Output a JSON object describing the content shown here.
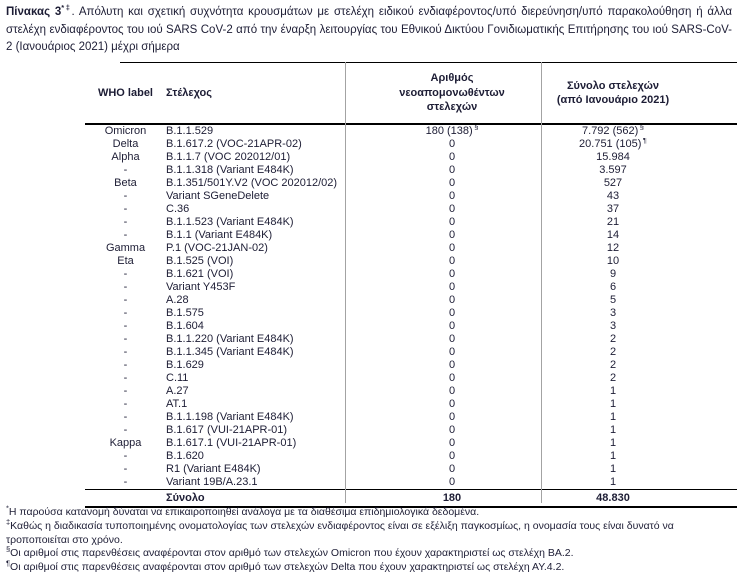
{
  "title": {
    "heading": "Πίνακας 3",
    "heading_sup": "*‡",
    "body": ". Απόλυτη και σχετική συχνότητα κρουσμάτων με στελέχη ειδικού ενδιαφέροντος/υπό διερεύνηση/υπό παρακολούθηση ή άλλα στελέχη ενδιαφέροντος του ιού SARS CoV-2 από την έναρξη λειτουργίας του Εθνικού Δικτύου Γονιδιωματικής Επιτήρησης του ιού SARS-CoV-2 (Ιανουάριος 2021) μέχρι σήμερα"
  },
  "table": {
    "headers": {
      "who": "WHO label",
      "strain": "Στέλεχος",
      "new_count": "Αριθμός νεοαπομονωθέντων στελεχών",
      "total_count": "Σύνολο στελεχών (από Ιανουάριο 2021)"
    },
    "rows": [
      {
        "who": "Omicron",
        "strain": "B.1.1.529",
        "new": "180 (138)",
        "new_sup": "§",
        "total": "7.792 (562)",
        "total_sup": "§"
      },
      {
        "who": "Delta",
        "strain": "B.1.617.2 (VOC-21APR-02)",
        "new": "0",
        "total": "20.751 (105)",
        "total_sup": "¶"
      },
      {
        "who": "Alpha",
        "strain": "B.1.1.7 (VOC 202012/01)",
        "new": "0",
        "total": "15.984"
      },
      {
        "who": "-",
        "strain": "B.1.1.318 (Variant E484K)",
        "new": "0",
        "total": "3.597"
      },
      {
        "who": "Beta",
        "strain": "B.1.351/501Y.V2 (VOC 202012/02)",
        "new": "0",
        "total": "527"
      },
      {
        "who": "-",
        "strain": "Variant SGeneDelete",
        "new": "0",
        "total": "43"
      },
      {
        "who": "-",
        "strain": "C.36",
        "new": "0",
        "total": "37"
      },
      {
        "who": "-",
        "strain": "B.1.1.523 (Variant E484K)",
        "new": "0",
        "total": "21"
      },
      {
        "who": "-",
        "strain": "B.1.1 (Variant E484K)",
        "new": "0",
        "total": "14"
      },
      {
        "who": "Gamma",
        "strain": "P.1 (VOC-21JAN-02)",
        "new": "0",
        "total": "12"
      },
      {
        "who": "Eta",
        "strain": "B.1.525 (VOI)",
        "new": "0",
        "total": "10"
      },
      {
        "who": "-",
        "strain": "B.1.621 (VOI)",
        "new": "0",
        "total": "9"
      },
      {
        "who": "-",
        "strain": "Variant Y453F",
        "new": "0",
        "total": "6"
      },
      {
        "who": "-",
        "strain": "A.28",
        "new": "0",
        "total": "5"
      },
      {
        "who": "-",
        "strain": "B.1.575",
        "new": "0",
        "total": "3"
      },
      {
        "who": "-",
        "strain": "B.1.604",
        "new": "0",
        "total": "3"
      },
      {
        "who": "-",
        "strain": "B.1.1.220 (Variant E484K)",
        "new": "0",
        "total": "2"
      },
      {
        "who": "-",
        "strain": "B.1.1.345 (Variant E484K)",
        "new": "0",
        "total": "2"
      },
      {
        "who": "-",
        "strain": "B.1.629",
        "new": "0",
        "total": "2"
      },
      {
        "who": "-",
        "strain": "C.11",
        "new": "0",
        "total": "2"
      },
      {
        "who": "-",
        "strain": "A.27",
        "new": "0",
        "total": "1"
      },
      {
        "who": "-",
        "strain": "AT.1",
        "new": "0",
        "total": "1"
      },
      {
        "who": "-",
        "strain": "B.1.1.198 (Variant E484K)",
        "new": "0",
        "total": "1"
      },
      {
        "who": "-",
        "strain": "B.1.617 (VUI-21APR-01)",
        "new": "0",
        "total": "1"
      },
      {
        "who": "Kappa",
        "strain": "B.1.617.1 (VUI-21APR-01)",
        "new": "0",
        "total": "1"
      },
      {
        "who": "-",
        "strain": "B.1.620",
        "new": "0",
        "total": "1"
      },
      {
        "who": "-",
        "strain": "R1 (Variant E484K)",
        "new": "0",
        "total": "1"
      },
      {
        "who": "-",
        "strain": "Variant 19B/A.23.1",
        "new": "0",
        "total": "1"
      }
    ],
    "total_row": {
      "label": "Σύνολο",
      "new": "180",
      "total": "48.830"
    }
  },
  "footnotes": [
    {
      "marker": "*",
      "text": "Η παρούσα κατανομή δύναται να επικαιροποιηθεί ανάλογα με τα διαθέσιμα επιδημιολογικά δεδομένα."
    },
    {
      "marker": "‡",
      "text": "Καθώς η διαδικασία τυποποιημένης ονοματολογίας των στελεχών ενδιαφέροντος είναι σε εξέλιξη παγκοσμίως, η ονομασία τους είναι δυνατό να τροποποιείται στο χρόνο."
    },
    {
      "marker": "§",
      "text": "Οι αριθμοί στις παρενθέσεις αναφέρονται στον αριθμό των στελεχών Omicron που έχουν χαρακτηριστεί ως στελέχη ΒΑ.2."
    },
    {
      "marker": "¶",
      "text": "Οι αριθμοί στις παρενθέσεις αναφέρονται στον αριθμό των στελεχών Delta που έχουν χαρακτηριστεί ως στελέχη ΑΥ.4.2."
    }
  ],
  "colors": {
    "text": "#1d1d35",
    "border": "#000000",
    "column_divider": "#a3a3a3",
    "background": "#ffffff"
  }
}
